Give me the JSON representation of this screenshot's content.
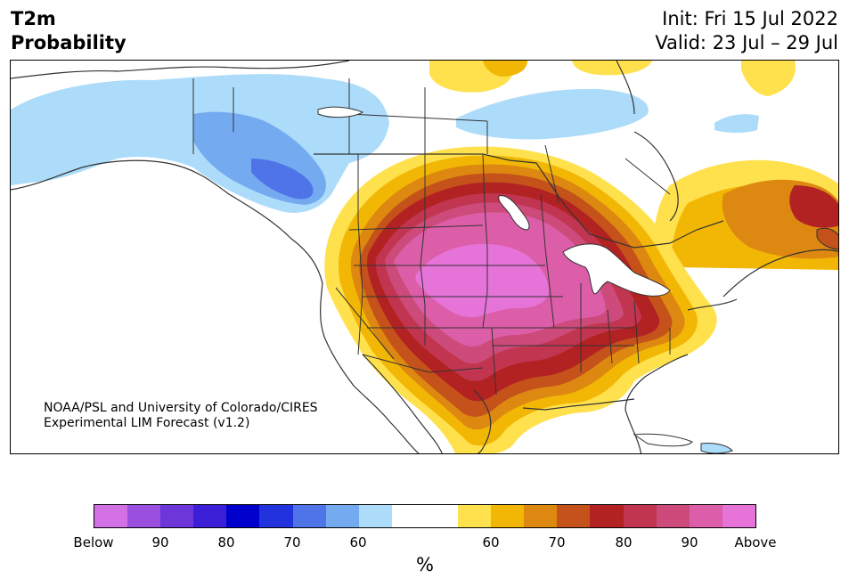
{
  "header": {
    "title_line1": "T2m",
    "title_line2": "Probability",
    "init_text": "Init: Fri 15 Jul 2022",
    "valid_text": "Valid: 23 Jul – 29 Jul"
  },
  "credit": {
    "line1": "NOAA/PSL and University of Colorado/CIRES",
    "line2": "Experimental LIM Forecast (v1.2)"
  },
  "colorbar": {
    "unit": "%",
    "tick_labels": [
      "Below",
      "90",
      "80",
      "70",
      "60",
      "60",
      "70",
      "80",
      "90",
      "Above"
    ],
    "colors": [
      "#d470e6",
      "#9a4fe0",
      "#6c36d9",
      "#3a1fd6",
      "#0000cc",
      "#2233dd",
      "#4f74e8",
      "#74aaf0",
      "#acdcfa",
      "#ffffff",
      "#ffffff",
      "#ffe14d",
      "#f2b705",
      "#dd8810",
      "#c4521a",
      "#b22222",
      "#c13550",
      "#cc4b7a",
      "#dc5ea8",
      "#e674d8"
    ]
  },
  "map_colors": {
    "land": "#ffffff",
    "light_blue": "#acdcfa",
    "mid_blue": "#74aaf0",
    "blue": "#4f74e8",
    "yellow": "#ffe14d",
    "gold": "#f2b705",
    "orange": "#dd8810",
    "dark_orange": "#c4521a",
    "red": "#b22222",
    "crimson": "#c13550",
    "rose": "#cc4b7a",
    "pink": "#dc5ea8",
    "magenta": "#e674d8",
    "border": "#333333"
  }
}
